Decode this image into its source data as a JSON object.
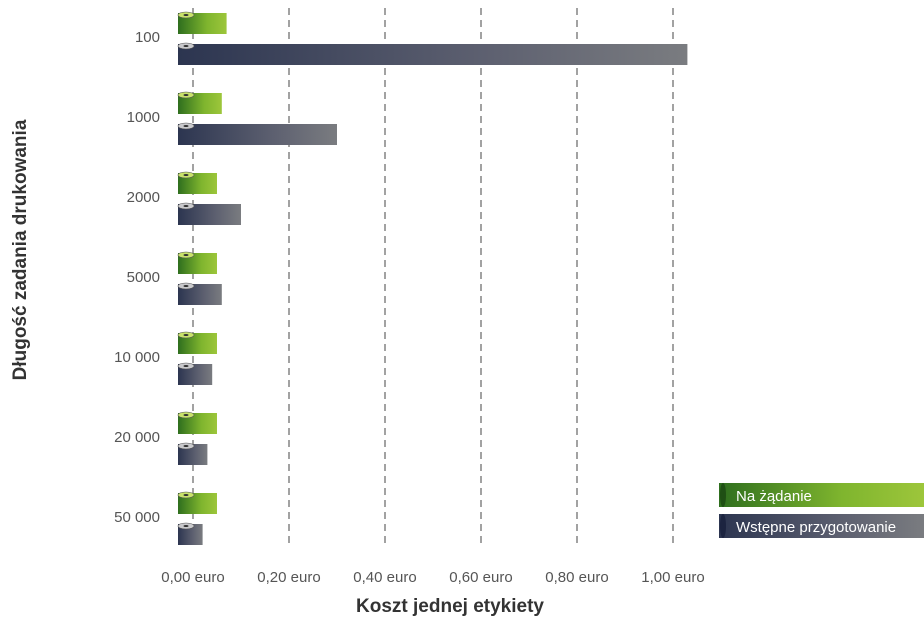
{
  "chart_data": {
    "type": "bar",
    "orientation": "horizontal",
    "title": "",
    "xlabel": "Koszt jednej etykiety",
    "ylabel": "Długość zadania drukowania",
    "categories": [
      "100",
      "1000",
      "2000",
      "5000",
      "10 000",
      "20 000",
      "50 000"
    ],
    "series": [
      {
        "name": "Na żądanie",
        "color": "#9dc63b",
        "values": [
          0.07,
          0.06,
          0.05,
          0.05,
          0.05,
          0.05,
          0.05
        ]
      },
      {
        "name": "Wstępne przygotowanie",
        "color": "#7a7c80",
        "values": [
          1.03,
          0.3,
          0.1,
          0.06,
          0.04,
          0.03,
          0.02
        ]
      }
    ],
    "x_ticks": [
      0,
      0.2,
      0.4,
      0.6,
      0.8,
      1.0
    ],
    "x_tick_labels": [
      "0,00 euro",
      "0,20 euro",
      "0,40 euro",
      "0,60 euro",
      "0,80 euro",
      "1,00 euro"
    ],
    "xlim": [
      0,
      1.0
    ],
    "grid": "vertical dashed",
    "legend_position": "bottom-right"
  }
}
